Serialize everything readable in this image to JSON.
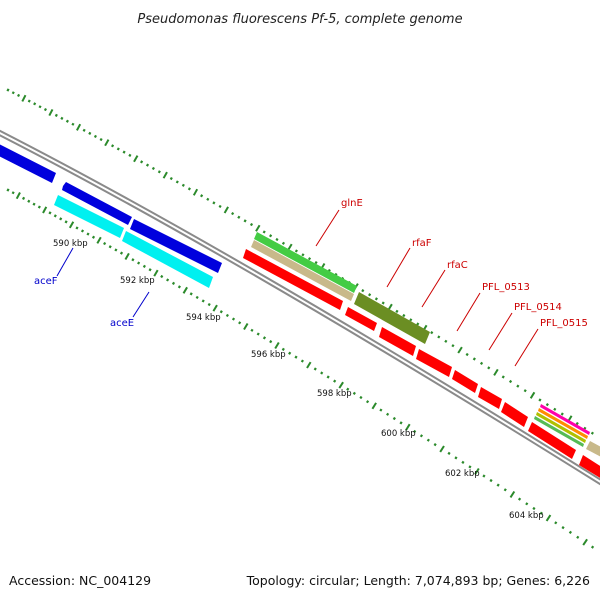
{
  "title": "Pseudomonas fluorescens Pf-5, complete genome",
  "footer": {
    "accession": "Accession: NC_004129",
    "summary": "Topology: circular; Length: 7,074,893 bp; Genes: 6,226"
  },
  "colors": {
    "backbone": "#909090",
    "tick": "#2b8a2b",
    "ncbi_blue_gene": "#0000dd",
    "cyan_gene": "#00ffff",
    "red_gene": "#ff0000",
    "olive_gene": "#6b8e23",
    "green_gene": "#33cc33",
    "tan_gene": "#c8b98a",
    "label_red": "#cc0000",
    "label_blue": "#0000cc"
  },
  "ruler_labels": [
    "590 kbp",
    "592 kbp",
    "594 kbp",
    "596 kbp",
    "598 kbp",
    "600 kbp",
    "602 kbp",
    "604 kbp"
  ],
  "gene_labels": [
    {
      "text": "glnE",
      "color": "red"
    },
    {
      "text": "rfaF",
      "color": "red"
    },
    {
      "text": "rfaC",
      "color": "red"
    },
    {
      "text": "PFL_0513",
      "color": "red"
    },
    {
      "text": "PFL_0514",
      "color": "red"
    },
    {
      "text": "PFL_0515",
      "color": "red"
    },
    {
      "text": "aceF",
      "color": "blue"
    },
    {
      "text": "aceE",
      "color": "blue"
    }
  ]
}
